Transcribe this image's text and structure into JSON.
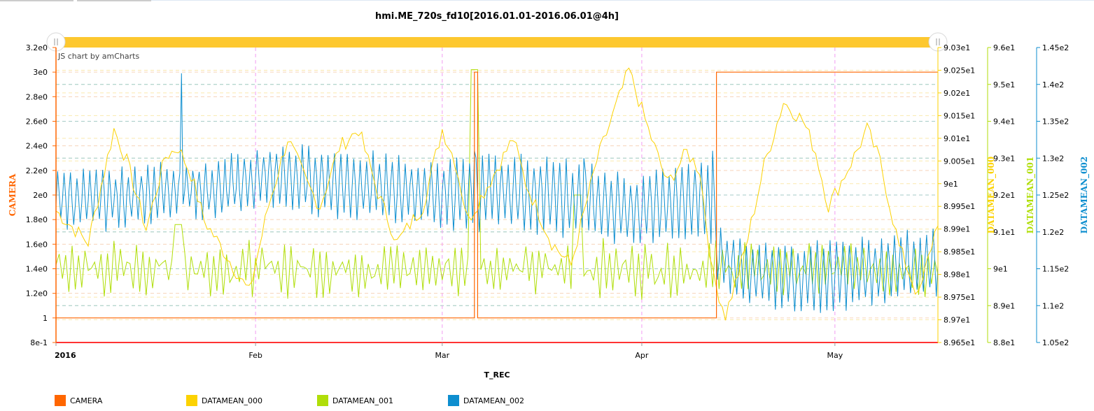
{
  "chart_data": {
    "type": "line",
    "title": "hmi.ME_720s_fd10[2016.01.01-2016.06.01@4h]",
    "credit": "JS chart by amCharts",
    "xlabel": "T_REC",
    "x_ticks": [
      {
        "label": "2016",
        "day": 0,
        "bold": true
      },
      {
        "label": "Feb",
        "day": 31,
        "bold": false
      },
      {
        "label": "Mar",
        "day": 60,
        "bold": false
      },
      {
        "label": "Apr",
        "day": 91,
        "bold": false
      },
      {
        "label": "May",
        "day": 121,
        "bold": false
      }
    ],
    "xlim_days": [
      0,
      137
    ],
    "axes": [
      {
        "id": "camera",
        "title": "CAMERA",
        "color": "#ff6600",
        "side": "left",
        "ylim": [
          0.8,
          3.2
        ],
        "ticks": [
          {
            "v": 0.8,
            "label": "8e-1"
          },
          {
            "v": 1.0,
            "label": "1"
          },
          {
            "v": 1.2,
            "label": "1.2e0"
          },
          {
            "v": 1.4,
            "label": "1.4e0"
          },
          {
            "v": 1.6,
            "label": "1.6e0"
          },
          {
            "v": 1.8,
            "label": "1.8e0"
          },
          {
            "v": 2.0,
            "label": "2e0"
          },
          {
            "v": 2.2,
            "label": "2.2e0"
          },
          {
            "v": 2.4,
            "label": "2.4e0"
          },
          {
            "v": 2.6,
            "label": "2.6e0"
          },
          {
            "v": 2.8,
            "label": "2.8e0"
          },
          {
            "v": 3.0,
            "label": "3e0"
          },
          {
            "v": 3.2,
            "label": "3.2e0"
          }
        ]
      },
      {
        "id": "datamean000",
        "title": "DATAMEAN_000",
        "color": "#fcd202",
        "side": "right",
        "ylim": [
          89.65,
          90.3
        ],
        "ticks": [
          {
            "v": 89.65,
            "label": "8.965e1"
          },
          {
            "v": 89.7,
            "label": "8.97e1"
          },
          {
            "v": 89.75,
            "label": "8.975e1"
          },
          {
            "v": 89.8,
            "label": "8.98e1"
          },
          {
            "v": 89.85,
            "label": "8.985e1"
          },
          {
            "v": 89.9,
            "label": "8.99e1"
          },
          {
            "v": 89.95,
            "label": "8.995e1"
          },
          {
            "v": 90.0,
            "label": "9e1"
          },
          {
            "v": 90.05,
            "label": "9.005e1"
          },
          {
            "v": 90.1,
            "label": "9.01e1"
          },
          {
            "v": 90.15,
            "label": "9.015e1"
          },
          {
            "v": 90.2,
            "label": "9.02e1"
          },
          {
            "v": 90.25,
            "label": "9.025e1"
          },
          {
            "v": 90.3,
            "label": "9.03e1"
          }
        ]
      },
      {
        "id": "datamean001",
        "title": "DATAMEAN_001",
        "color": "#b0de09",
        "side": "right",
        "ylim": [
          88,
          96
        ],
        "ticks": [
          {
            "v": 88,
            "label": "8.8e1"
          },
          {
            "v": 89,
            "label": "8.9e1"
          },
          {
            "v": 90,
            "label": "9e1"
          },
          {
            "v": 91,
            "label": "9.1e1"
          },
          {
            "v": 92,
            "label": "9.2e1"
          },
          {
            "v": 93,
            "label": "9.3e1"
          },
          {
            "v": 94,
            "label": "9.4e1"
          },
          {
            "v": 95,
            "label": "9.5e1"
          },
          {
            "v": 96,
            "label": "9.6e1"
          }
        ]
      },
      {
        "id": "datamean002",
        "title": "DATAMEAN_002",
        "color": "#0d8ecf",
        "side": "right",
        "ylim": [
          105,
          145
        ],
        "ticks": [
          {
            "v": 105,
            "label": "1.05e2"
          },
          {
            "v": 110,
            "label": "1.1e2"
          },
          {
            "v": 115,
            "label": "1.15e2"
          },
          {
            "v": 120,
            "label": "1.2e2"
          },
          {
            "v": 125,
            "label": "1.25e2"
          },
          {
            "v": 130,
            "label": "1.3e2"
          },
          {
            "v": 135,
            "label": "1.35e2"
          },
          {
            "v": 140,
            "label": "1.4e2"
          },
          {
            "v": 145,
            "label": "1.45e2"
          }
        ]
      }
    ],
    "series": [
      {
        "name": "CAMERA",
        "axis": "camera",
        "color": "#ff6600",
        "step": true,
        "points": [
          [
            0,
            1
          ],
          [
            65,
            1
          ],
          [
            65,
            3
          ],
          [
            65.5,
            3
          ],
          [
            65.5,
            1
          ],
          [
            102.6,
            1
          ],
          [
            102.6,
            3
          ],
          [
            137,
            3
          ]
        ]
      },
      {
        "name": "DATAMEAN_000",
        "axis": "datamean000",
        "color": "#fcd202",
        "envelope": [
          [
            0,
            89.94
          ],
          [
            5,
            89.87
          ],
          [
            9,
            90.12
          ],
          [
            11,
            90.05
          ],
          [
            14,
            89.9
          ],
          [
            17,
            90.06
          ],
          [
            19,
            90.08
          ],
          [
            21,
            90.02
          ],
          [
            23,
            89.92
          ],
          [
            27,
            89.83
          ],
          [
            30,
            89.76
          ],
          [
            33,
            89.95
          ],
          [
            36,
            90.1
          ],
          [
            39,
            90.0
          ],
          [
            41,
            89.95
          ],
          [
            44,
            90.08
          ],
          [
            47,
            90.12
          ],
          [
            50,
            89.98
          ],
          [
            53,
            89.87
          ],
          [
            57,
            89.95
          ],
          [
            60,
            90.12
          ],
          [
            62,
            90.05
          ],
          [
            64,
            89.92
          ],
          [
            68,
            90.02
          ],
          [
            71,
            90.1
          ],
          [
            73,
            90.0
          ],
          [
            77,
            89.87
          ],
          [
            80,
            89.82
          ],
          [
            84,
            90.05
          ],
          [
            89,
            90.25
          ],
          [
            92,
            90.12
          ],
          [
            95,
            90.0
          ],
          [
            98,
            90.07
          ],
          [
            100,
            90.03
          ],
          [
            102,
            89.8
          ],
          [
            104,
            89.71
          ],
          [
            107,
            89.85
          ],
          [
            110,
            90.04
          ],
          [
            113,
            90.18
          ],
          [
            116,
            90.14
          ],
          [
            118,
            90.07
          ],
          [
            120,
            89.95
          ],
          [
            124,
            90.06
          ],
          [
            126,
            90.12
          ],
          [
            128,
            90.05
          ],
          [
            131,
            89.86
          ],
          [
            134,
            89.75
          ],
          [
            137,
            89.92
          ]
        ]
      },
      {
        "name": "DATAMEAN_001",
        "axis": "datamean001",
        "color": "#b0de09",
        "points": [
          [
            0,
            90.2
          ],
          [
            2,
            89.6
          ],
          [
            4,
            90.5
          ],
          [
            6,
            89.4
          ],
          [
            8,
            90.8
          ],
          [
            10,
            89.5
          ],
          [
            12,
            90.7
          ],
          [
            14,
            89.6
          ],
          [
            16,
            90.4
          ],
          [
            18,
            89.4
          ],
          [
            19,
            91.2
          ],
          [
            20,
            89.8
          ],
          [
            22,
            90.9
          ],
          [
            24,
            89.5
          ],
          [
            26,
            90.2
          ],
          [
            28,
            89.6
          ],
          [
            30,
            90.5
          ],
          [
            32,
            89.3
          ],
          [
            34,
            90.9
          ],
          [
            36,
            89.5
          ],
          [
            38,
            90.3
          ],
          [
            40,
            89.4
          ],
          [
            42,
            90.8
          ],
          [
            44,
            89.7
          ],
          [
            46,
            90.9
          ],
          [
            48,
            89.6
          ],
          [
            50,
            90.6
          ],
          [
            52,
            89.4
          ],
          [
            54,
            90.7
          ],
          [
            56,
            89.5
          ],
          [
            58,
            90.6
          ],
          [
            60,
            89.4
          ],
          [
            62,
            90.4
          ],
          [
            64,
            89.6
          ],
          [
            65,
            95.4
          ],
          [
            66,
            89.8
          ],
          [
            68,
            90.9
          ],
          [
            70,
            89.5
          ],
          [
            72,
            90.6
          ],
          [
            74,
            89.7
          ],
          [
            76,
            90.7
          ],
          [
            78,
            89.5
          ],
          [
            80,
            90.9
          ],
          [
            81,
            92.0
          ],
          [
            82,
            89.4
          ],
          [
            84,
            90.6
          ],
          [
            86,
            89.5
          ],
          [
            88,
            90.8
          ],
          [
            90,
            89.4
          ],
          [
            92,
            90.7
          ],
          [
            94,
            89.6
          ],
          [
            96,
            90.4
          ],
          [
            98,
            89.5
          ],
          [
            100,
            90.3
          ],
          [
            102,
            89.9
          ],
          [
            104,
            90.8
          ],
          [
            106,
            89.6
          ],
          [
            108,
            90.5
          ],
          [
            110,
            89.7
          ],
          [
            112,
            90.6
          ],
          [
            114,
            89.5
          ],
          [
            116,
            90.4
          ],
          [
            118,
            89.6
          ],
          [
            120,
            90.6
          ],
          [
            122,
            89.5
          ],
          [
            124,
            90.4
          ],
          [
            126,
            89.6
          ],
          [
            128,
            90.5
          ],
          [
            130,
            89.4
          ],
          [
            132,
            90.6
          ],
          [
            134,
            89.3
          ],
          [
            136,
            90.2
          ],
          [
            137,
            89.8
          ]
        ]
      },
      {
        "name": "DATAMEAN_002",
        "axis": "datamean002",
        "color": "#0d8ecf",
        "envelope_hi": [
          [
            0,
            128
          ],
          [
            10,
            128
          ],
          [
            19,
            129
          ],
          [
            25,
            129
          ],
          [
            28,
            130
          ],
          [
            33,
            131
          ],
          [
            40,
            131
          ],
          [
            50,
            130
          ],
          [
            60,
            129
          ],
          [
            70,
            130
          ],
          [
            80,
            129
          ],
          [
            90,
            127
          ],
          [
            100,
            129
          ],
          [
            102,
            128
          ],
          [
            103,
            120
          ],
          [
            110,
            118
          ],
          [
            120,
            118
          ],
          [
            130,
            119
          ],
          [
            137,
            120
          ]
        ],
        "envelope_lo": [
          [
            0,
            121
          ],
          [
            10,
            121
          ],
          [
            19,
            123
          ],
          [
            25,
            122
          ],
          [
            28,
            123
          ],
          [
            33,
            124
          ],
          [
            40,
            123
          ],
          [
            50,
            122
          ],
          [
            60,
            121
          ],
          [
            70,
            121
          ],
          [
            80,
            120
          ],
          [
            90,
            119
          ],
          [
            100,
            120
          ],
          [
            102,
            119
          ],
          [
            103,
            113
          ],
          [
            110,
            110
          ],
          [
            120,
            110
          ],
          [
            130,
            111
          ],
          [
            137,
            112
          ]
        ],
        "spikes": [
          [
            19.5,
            141.5
          ],
          [
            65,
            131
          ],
          [
            82,
            130
          ],
          [
            102,
            131
          ]
        ]
      }
    ],
    "legend": [
      {
        "label": "CAMERA",
        "color": "#ff6600"
      },
      {
        "label": "DATAMEAN_000",
        "color": "#fcd202"
      },
      {
        "label": "DATAMEAN_001",
        "color": "#b0de09"
      },
      {
        "label": "DATAMEAN_002",
        "color": "#0d8ecf"
      }
    ],
    "scrollbar": {
      "color": "#fdc82f",
      "range_days": [
        0,
        137
      ]
    },
    "legend_position": "bottom"
  }
}
